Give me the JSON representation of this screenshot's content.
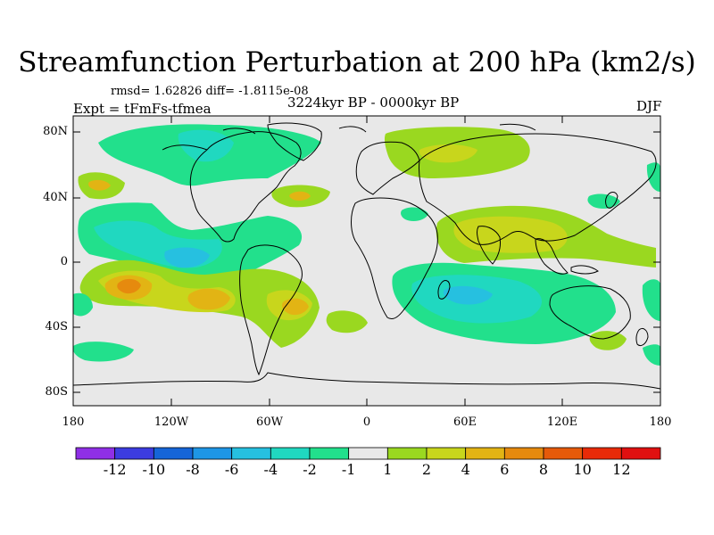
{
  "title": "Streamfunction Perturbation at 200 hPa (km2/s)",
  "stats_line": "rmsd= 1.62826 diff= -1.8115e-08",
  "experiment": "Expt = tFmFs-tfmea",
  "period": "3224kyr BP - 0000kyr BP",
  "season": "DJF",
  "axes": {
    "y_ticks": [
      "80N",
      "40N",
      "0",
      "40S",
      "80S"
    ],
    "x_ticks": [
      "180",
      "120W",
      "60W",
      "0",
      "60E",
      "120E",
      "180"
    ]
  },
  "colorbar": {
    "labels": [
      "-12",
      "-10",
      "-8",
      "-6",
      "-4",
      "-2",
      "-1",
      "1",
      "2",
      "4",
      "6",
      "8",
      "10",
      "12"
    ],
    "colors": [
      "#8f2fe6",
      "#3c3ce0",
      "#1565d8",
      "#1e96e6",
      "#26c0e0",
      "#20d8c0",
      "#22e08c",
      "#e8e8e8",
      "#9ad820",
      "#c8d61c",
      "#e2b414",
      "#e68a0e",
      "#e65a0a",
      "#e82a08",
      "#e01010"
    ]
  },
  "palette": {
    "land_outline": "#000000",
    "background": "#e8e8e8"
  }
}
